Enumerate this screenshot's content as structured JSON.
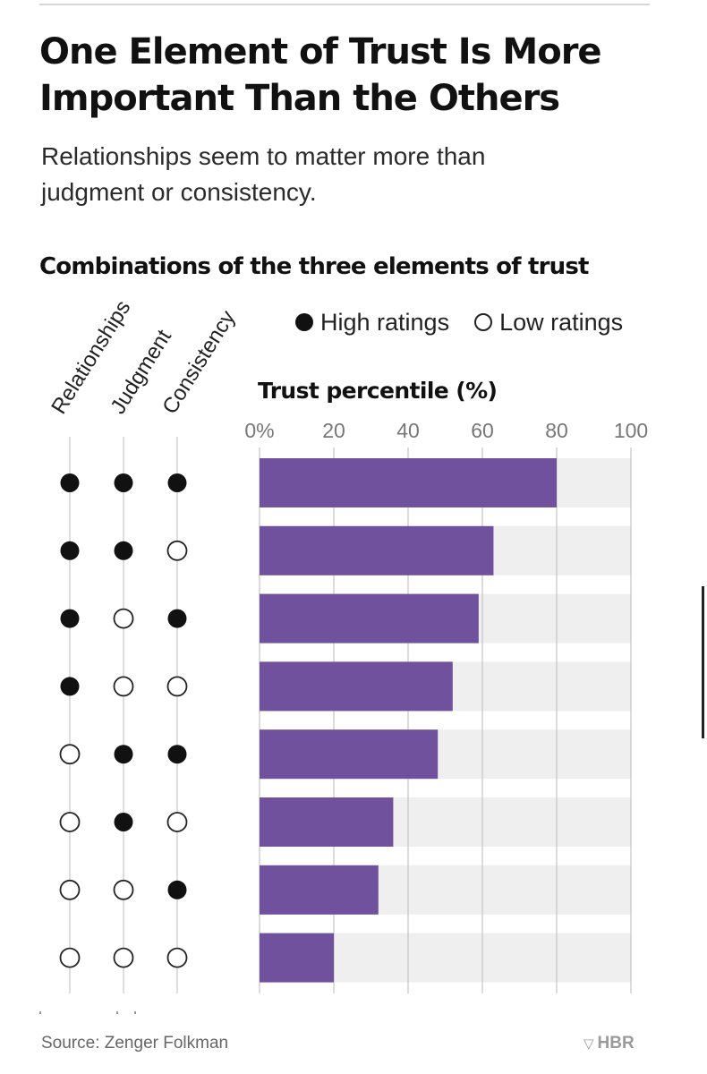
{
  "header": {
    "title": "One Element of Trust Is More Important Than the Others",
    "subtitle": "Relationships seem to matter more than judgment or consistency.",
    "section_title": "Combinations of the three elements of trust"
  },
  "legend": {
    "high_label": "High ratings",
    "low_label": "Low ratings"
  },
  "columns": [
    "Relationships",
    "Judgment",
    "Consistency"
  ],
  "chart_data": {
    "type": "bar",
    "orientation": "horizontal",
    "title": "Trust percentile (%)",
    "xlabel": "Trust percentile (%)",
    "xlim": [
      0,
      100
    ],
    "x_ticks": [
      0,
      20,
      40,
      60,
      80,
      100
    ],
    "x_tick_labels": [
      "0%",
      "20",
      "40",
      "60",
      "80",
      "100"
    ],
    "grid": true,
    "categories": [
      "Relationships high, Judgment high, Consistency high",
      "Relationships high, Judgment high, Consistency low",
      "Relationships high, Judgment low, Consistency high",
      "Relationships high, Judgment low, Consistency low",
      "Relationships low, Judgment high, Consistency high",
      "Relationships low, Judgment high, Consistency low",
      "Relationships low, Judgment low, Consistency high",
      "Relationships low, Judgment low, Consistency low"
    ],
    "combinations": [
      [
        true,
        true,
        true
      ],
      [
        true,
        true,
        false
      ],
      [
        true,
        false,
        true
      ],
      [
        true,
        false,
        false
      ],
      [
        false,
        true,
        true
      ],
      [
        false,
        true,
        false
      ],
      [
        false,
        false,
        true
      ],
      [
        false,
        false,
        false
      ]
    ],
    "values": [
      80,
      63,
      59,
      52,
      48,
      36,
      32,
      20
    ],
    "bar_color": "#6f519e",
    "track_color": "#efefef"
  },
  "footer": {
    "source": "Source: Zenger Folkman",
    "brand": "HBR"
  }
}
